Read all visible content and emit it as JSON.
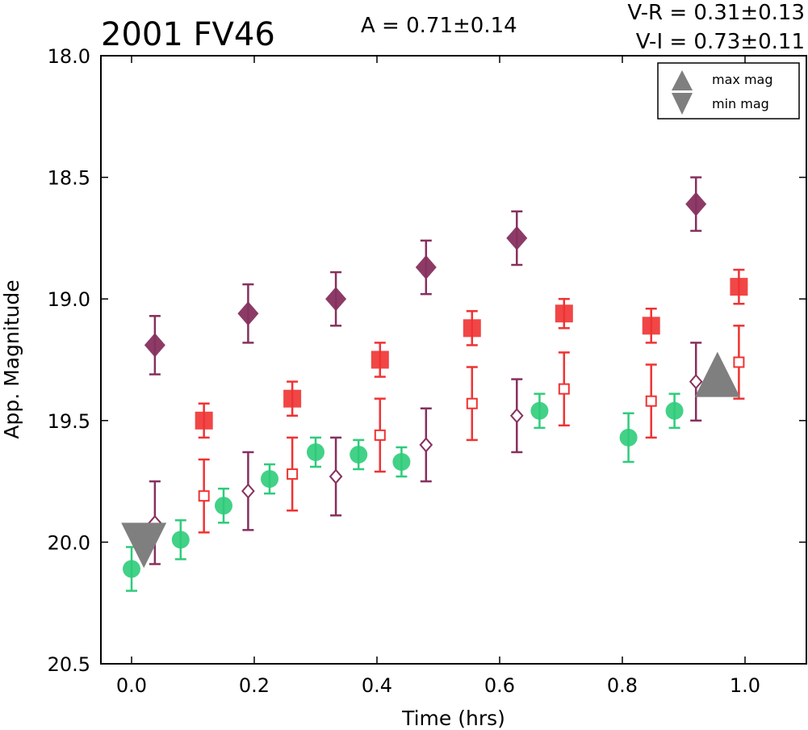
{
  "chart_data": {
    "type": "scatter",
    "title": "2001 FV46",
    "annotations": {
      "amplitude": "A  = 0.71±0.14",
      "v_r": "V-R = 0.31±0.13",
      "v_i": "V-I  = 0.73±0.11"
    },
    "xlabel": "Time (hrs)",
    "ylabel": "App. Magnitude",
    "xlim": [
      -0.05,
      1.1
    ],
    "ylim": [
      20.5,
      18.0
    ],
    "y_inverted": true,
    "x_ticks": [
      "0.0",
      "0.2",
      "0.4",
      "0.6",
      "0.8",
      "1.0"
    ],
    "y_ticks": [
      "18.0",
      "18.5",
      "19.0",
      "19.5",
      "20.0",
      "20.5"
    ],
    "grid": false,
    "legend": {
      "position": "top-right",
      "entries": [
        {
          "label": "max mag",
          "marker": "triangle-up",
          "color": "#7f7f7f"
        },
        {
          "label": "min mag",
          "marker": "triangle-down",
          "color": "#7f7f7f"
        }
      ]
    },
    "series": [
      {
        "marker": "circle-filled",
        "color": "#2ecc7a",
        "x": [
          0.0,
          0.08,
          0.15,
          0.225,
          0.3,
          0.37,
          0.44,
          0.665,
          0.81,
          0.885
        ],
        "y": [
          20.11,
          19.99,
          19.85,
          19.74,
          19.63,
          19.64,
          19.67,
          19.46,
          19.57,
          19.46
        ],
        "err": [
          0.09,
          0.08,
          0.07,
          0.06,
          0.06,
          0.06,
          0.06,
          0.07,
          0.1,
          0.07
        ]
      },
      {
        "marker": "square-filled",
        "color": "#f03232",
        "x": [
          0.118,
          0.262,
          0.405,
          0.555,
          0.705,
          0.847,
          0.99
        ],
        "y": [
          19.5,
          19.41,
          19.25,
          19.12,
          19.06,
          19.11,
          18.95
        ],
        "err": [
          0.07,
          0.07,
          0.07,
          0.07,
          0.06,
          0.07,
          0.07
        ]
      },
      {
        "marker": "square-open",
        "color": "#f03232",
        "x": [
          0.118,
          0.262,
          0.405,
          0.555,
          0.705,
          0.847,
          0.99
        ],
        "y": [
          19.81,
          19.72,
          19.56,
          19.43,
          19.37,
          19.42,
          19.26
        ],
        "err": [
          0.15,
          0.15,
          0.15,
          0.15,
          0.15,
          0.15,
          0.15
        ]
      },
      {
        "marker": "diamond-filled",
        "color": "#86305e",
        "x": [
          0.038,
          0.19,
          0.333,
          0.48,
          0.628,
          0.92
        ],
        "y": [
          19.19,
          19.06,
          19.0,
          18.87,
          18.75,
          18.61
        ],
        "err": [
          0.12,
          0.12,
          0.11,
          0.11,
          0.11,
          0.11
        ]
      },
      {
        "marker": "diamond-open",
        "color": "#86305e",
        "x": [
          0.038,
          0.19,
          0.333,
          0.48,
          0.628,
          0.92
        ],
        "y": [
          19.92,
          19.79,
          19.73,
          19.6,
          19.48,
          19.34
        ],
        "err": [
          0.17,
          0.16,
          0.16,
          0.15,
          0.15,
          0.16
        ]
      },
      {
        "marker": "triangle-down-large",
        "color": "#7f7f7f",
        "x": [
          0.02
        ],
        "y": [
          20.0
        ]
      },
      {
        "marker": "triangle-up-large",
        "color": "#7f7f7f",
        "x": [
          0.955
        ],
        "y": [
          19.31
        ]
      }
    ]
  }
}
